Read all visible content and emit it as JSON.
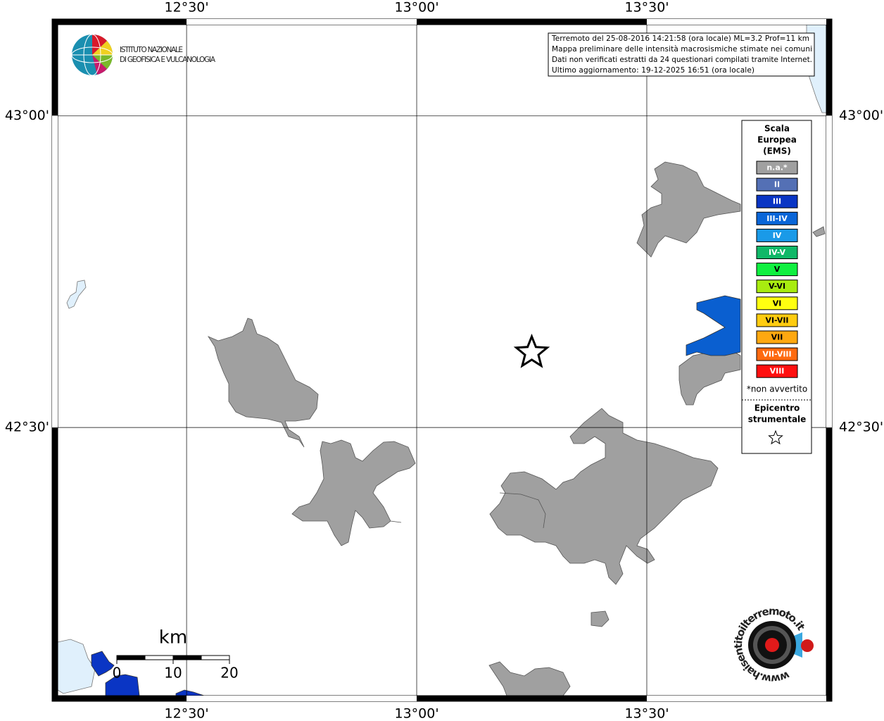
{
  "map_data": {
    "lonlim": [
      12.22,
      13.89
    ],
    "latlim": [
      42.07,
      43.146
    ],
    "lon_ticks": [
      {
        "value": 12.5,
        "label": "12°30'"
      },
      {
        "value": 13,
        "label": "13°00'"
      },
      {
        "value": 13.5,
        "label": "13°30'"
      }
    ],
    "lat_ticks": [
      {
        "value": 43,
        "label": "43°00'"
      },
      {
        "value": 42.5,
        "label": "42°30'"
      }
    ],
    "logo": {
      "lines": [
        "ISTITUTO NAZIONALE",
        "DI GEOFISICA E VULCANOLOGIA"
      ]
    },
    "info": [
      "Terremoto del 25-08-2016 14:21:58 (ora locale) ML=3.2 Prof=11 km",
      "Mappa preliminare delle intensità macrosismiche stimate nei comuni",
      "Dati non verificati estratti da 24 questionari compilati tramite Internet.",
      "Ultimo aggiornamento: 19-12-2025 16:51 (ora locale)"
    ],
    "legend": {
      "title": [
        "Scala",
        "Europea",
        "(EMS)"
      ],
      "items": [
        {
          "label": "n.a.*",
          "color": "#a0a0a0"
        },
        {
          "label": "II",
          "color": "#5470b5"
        },
        {
          "label": "III",
          "color": "#0a35c4"
        },
        {
          "label": "III-IV",
          "color": "#0a66d8"
        },
        {
          "label": "IV",
          "color": "#1a9ae8"
        },
        {
          "label": "IV-V",
          "color": "#10b868"
        },
        {
          "label": "V",
          "color": "#10f040"
        },
        {
          "label": "V-VI",
          "color": "#a8ec10"
        },
        {
          "label": "VI",
          "color": "#ffff10"
        },
        {
          "label": "VI-VII",
          "color": "#ffcc10"
        },
        {
          "label": "VII",
          "color": "#ffa810"
        },
        {
          "label": "VII-VIII",
          "color": "#ff6a10"
        },
        {
          "label": "VIII",
          "color": "#ff1010"
        }
      ],
      "note": "*non avvertito",
      "epicenter_title": [
        "Epicentro",
        "strumentale"
      ]
    },
    "epicenter": {
      "lon": 13.25,
      "lat": 42.62
    },
    "scale_bar": {
      "unit": "km",
      "ticks": [
        0,
        10,
        20
      ]
    },
    "site": "www.haisentitoilterremoto.it"
  }
}
